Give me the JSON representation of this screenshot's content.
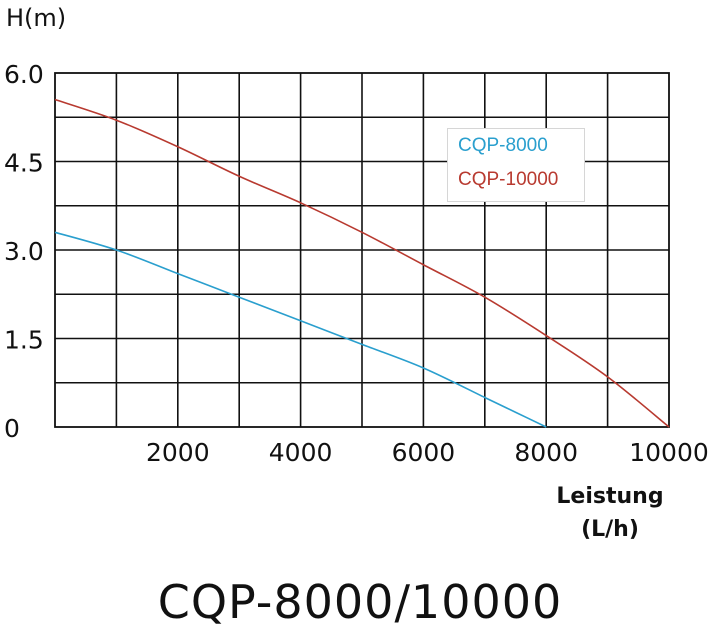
{
  "chart_data": {
    "type": "line",
    "ylabel": "H(m)",
    "xlabel_line1": "Leistung",
    "xlabel_line2": "(L/h)",
    "xlim": [
      0,
      10000
    ],
    "ylim": [
      0,
      6
    ],
    "yticks": [
      {
        "value": 6.0,
        "label": "6.0"
      },
      {
        "value": 4.5,
        "label": "4.5"
      },
      {
        "value": 3.0,
        "label": "3.0"
      },
      {
        "value": 1.5,
        "label": "1.5"
      },
      {
        "value": 0,
        "label": "0"
      }
    ],
    "xticks": [
      {
        "value": 2000,
        "label": "2000"
      },
      {
        "value": 4000,
        "label": "4000"
      },
      {
        "value": 6000,
        "label": "6000"
      },
      {
        "value": 8000,
        "label": "8000"
      },
      {
        "value": 10000,
        "label": "10000"
      }
    ],
    "grid": true,
    "legend_position": "top-right",
    "series": [
      {
        "name": "CQP-8000",
        "color": "#2a9fce",
        "x": [
          0,
          1000,
          2000,
          3000,
          4000,
          5000,
          6000,
          7000,
          7500,
          8000
        ],
        "y": [
          3.3,
          3.0,
          2.6,
          2.2,
          1.8,
          1.4,
          1.0,
          0.5,
          0.25,
          0
        ]
      },
      {
        "name": "CQP-10000",
        "color": "#b83a30",
        "x": [
          0,
          1000,
          2000,
          3000,
          4000,
          5000,
          6000,
          7000,
          8000,
          9000,
          10000
        ],
        "y": [
          5.55,
          5.2,
          4.75,
          4.25,
          3.8,
          3.3,
          2.75,
          2.2,
          1.55,
          0.85,
          0
        ]
      }
    ]
  },
  "title": "CQP-8000/10000"
}
